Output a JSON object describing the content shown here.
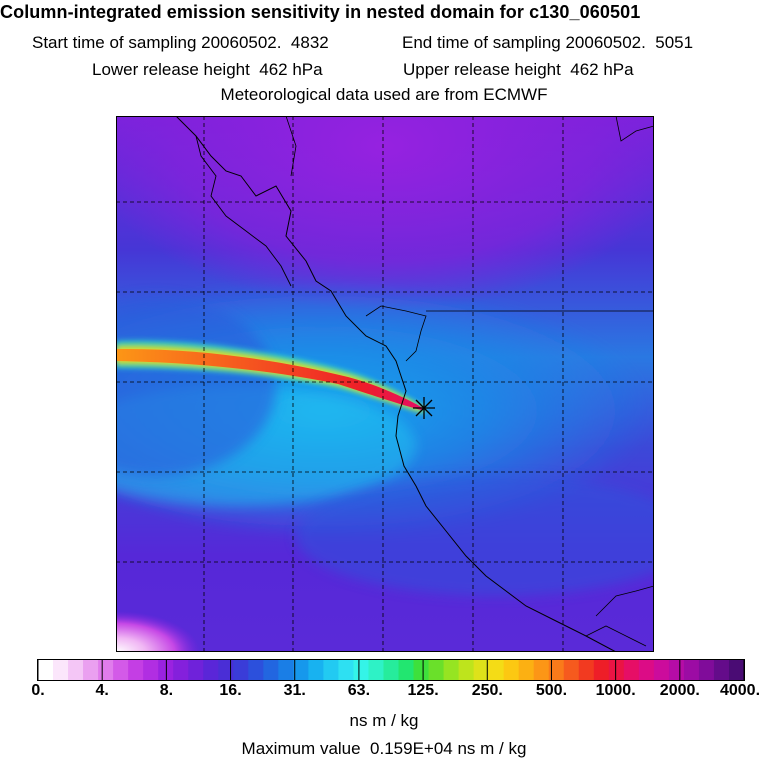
{
  "header": {
    "title": "Column-integrated emission sensitivity in nested domain for c130_060501",
    "start_time": "Start time of sampling 20060502.  4832",
    "end_time": "End time of sampling 20060502.  5051",
    "lower_release": "Lower release height  462 hPa",
    "upper_release": "Upper release height  462 hPa",
    "met_data": "Meteorological data used are from ECMWF"
  },
  "colorbar": {
    "tick_labels": [
      "0.",
      "4.",
      "8.",
      "16.",
      "31.",
      "63.",
      "125.",
      "250.",
      "500.",
      "1000.",
      "2000.",
      "4000."
    ],
    "colors": [
      "#ffffff",
      "#fbe6fb",
      "#f4c6f6",
      "#eaa0f0",
      "#e07cec",
      "#d35ae8",
      "#c43ee4",
      "#b12ee2",
      "#9a22e0",
      "#8420dc",
      "#6f22da",
      "#5a26d8",
      "#4a2ed6",
      "#3a3cd8",
      "#2c50dc",
      "#2266e0",
      "#1a7ee6",
      "#1698ec",
      "#18b2f0",
      "#22caf2",
      "#2ee0f2",
      "#34f4e8",
      "#2ef2c6",
      "#26ec9c",
      "#22e670",
      "#3ee03c",
      "#6ae02a",
      "#96e422",
      "#bee41c",
      "#dee21a",
      "#f4dc16",
      "#fcc812",
      "#fcb012",
      "#fc9616",
      "#fa7a1a",
      "#f65a1e",
      "#f23a20",
      "#ee1e28",
      "#ea1444",
      "#e60e66",
      "#dc0c86",
      "#cc0c9c",
      "#b60ca6",
      "#9c0ca4",
      "#800c9a",
      "#640c8a",
      "#4a0c74"
    ],
    "unit": "ns m / kg"
  },
  "max_value": "Maximum value  0.159E+04 ns m / kg",
  "marker": {
    "symbol": "release-point-star"
  }
}
